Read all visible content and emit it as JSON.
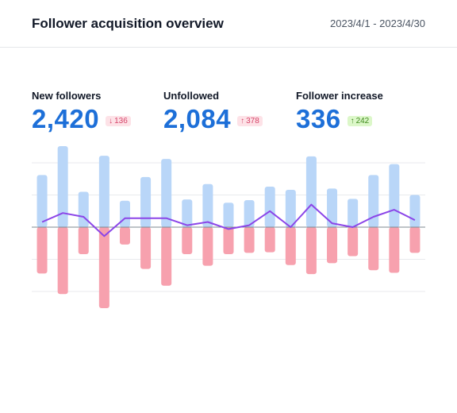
{
  "header": {
    "title": "Follower acquisition overview",
    "date_range": "2023/4/1 - 2023/4/30"
  },
  "stats": [
    {
      "label": "New followers",
      "value": "2,420",
      "change": "136",
      "direction": "down"
    },
    {
      "label": "Unfollowed",
      "value": "2,084",
      "change": "378",
      "direction": "up"
    },
    {
      "label": "Follower increase",
      "value": "336",
      "change": "242",
      "direction": "up"
    }
  ],
  "colors": {
    "accent": "#1d6fd8",
    "new_followers_bar": "#b9d6f8",
    "unfollowed_bar": "#f7a1ae",
    "net_line": "#8b45e8",
    "gridline": "#e8eaed",
    "baseline": "#7f8890"
  },
  "chart_data": {
    "type": "bar",
    "grid": true,
    "ylim": [
      -125,
      125
    ],
    "series": [
      {
        "values": [
          81,
          126,
          55,
          111,
          41,
          78,
          106,
          43,
          67,
          38,
          42,
          63,
          58,
          110,
          60,
          44,
          81,
          98,
          50
        ]
      },
      {
        "values": [
          -72,
          -104,
          -42,
          -126,
          -27,
          -65,
          -91,
          -42,
          -60,
          -42,
          -40,
          -39,
          -59,
          -73,
          -56,
          -45,
          -67,
          -71,
          -40
        ]
      },
      {
        "values": [
          8,
          22,
          16,
          -14,
          14,
          14,
          14,
          3,
          8,
          -3,
          3,
          25,
          0,
          35,
          6,
          0,
          16,
          27,
          11
        ]
      }
    ]
  }
}
